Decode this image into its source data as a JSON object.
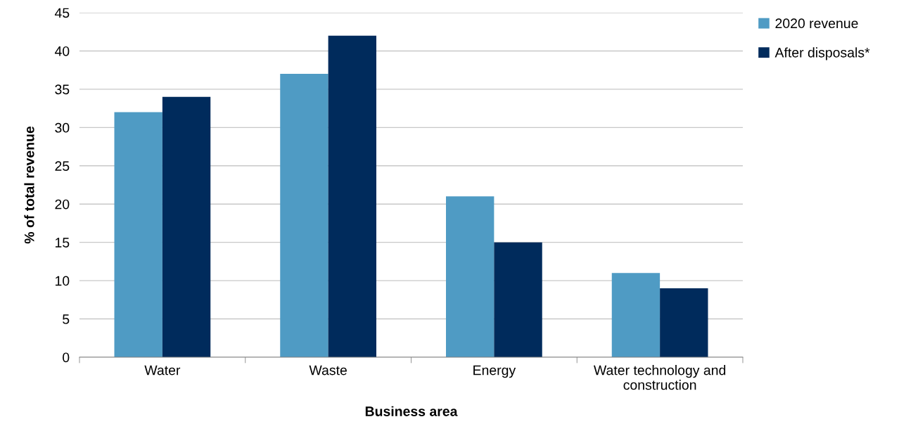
{
  "chart_data": {
    "type": "bar",
    "xlabel": "Business area",
    "ylabel": "% of total revenue",
    "categories": [
      "Water",
      "Waste",
      "Energy",
      "Water technology and\nconstruction"
    ],
    "series": [
      {
        "name": "2020 revenue",
        "color": "#4f9bc4",
        "values": [
          32,
          37,
          21,
          11
        ]
      },
      {
        "name": "After disposals*",
        "color": "#002b5c",
        "values": [
          34,
          42,
          15,
          9
        ]
      }
    ],
    "ylim": [
      0,
      45
    ],
    "yticks": [
      0,
      5,
      10,
      15,
      20,
      25,
      30,
      35,
      40,
      45
    ],
    "grid": "y",
    "legend": "top right"
  }
}
